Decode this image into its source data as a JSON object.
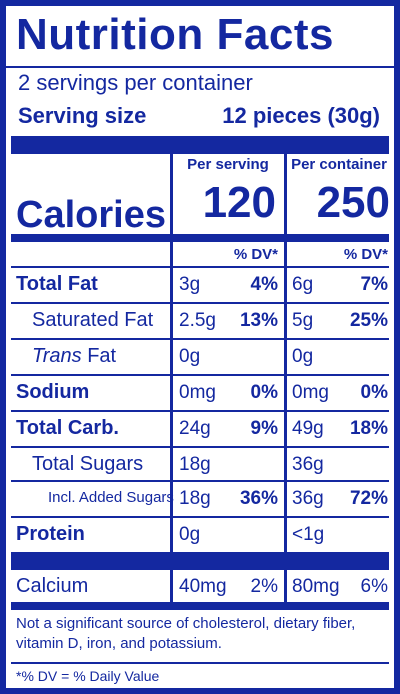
{
  "label": {
    "title": "Nutrition Facts",
    "servings": "2 servings per container",
    "serving_size_label": "Serving size",
    "serving_size_value": "12 pieces (30g)",
    "per_serving": "Per serving",
    "per_container": "Per container",
    "calories_label": "Calories",
    "calories_serving": "120",
    "calories_container": "250",
    "dv_header": "% DV*",
    "rows": [
      {
        "name": "Total Fat",
        "s_amt": "3g",
        "s_pct": "4%",
        "c_amt": "6g",
        "c_pct": "7%"
      },
      {
        "name": "Saturated Fat",
        "s_amt": "2.5g",
        "s_pct": "13%",
        "c_amt": "5g",
        "c_pct": "25%"
      },
      {
        "name_italic": "Trans",
        "name_rest": " Fat",
        "s_amt": "0g",
        "s_pct": "",
        "c_amt": "0g",
        "c_pct": ""
      },
      {
        "name": "Sodium",
        "s_amt": "0mg",
        "s_pct": "0%",
        "c_amt": "0mg",
        "c_pct": "0%"
      },
      {
        "name": "Total Carb.",
        "s_amt": "24g",
        "s_pct": "9%",
        "c_amt": "49g",
        "c_pct": "18%"
      },
      {
        "name": "Total Sugars",
        "s_amt": "18g",
        "s_pct": "",
        "c_amt": "36g",
        "c_pct": ""
      },
      {
        "name": "Incl. Added Sugars",
        "s_amt": "18g",
        "s_pct": "36%",
        "c_amt": "36g",
        "c_pct": "72%"
      },
      {
        "name": "Protein",
        "s_amt": "0g",
        "s_pct": "",
        "c_amt": "<1g",
        "c_pct": ""
      },
      {
        "name": "Calcium",
        "s_amt": "40mg",
        "s_pct": "2%",
        "c_amt": "80mg",
        "c_pct": "6%"
      }
    ],
    "footnote_1": "Not a significant source of cholesterol, dietary fiber, vitamin D, iron, and potassium.",
    "footnote_2": "*% DV = % Daily Value"
  },
  "colors": {
    "ink": "#1428a0",
    "background": "#ffffff"
  }
}
